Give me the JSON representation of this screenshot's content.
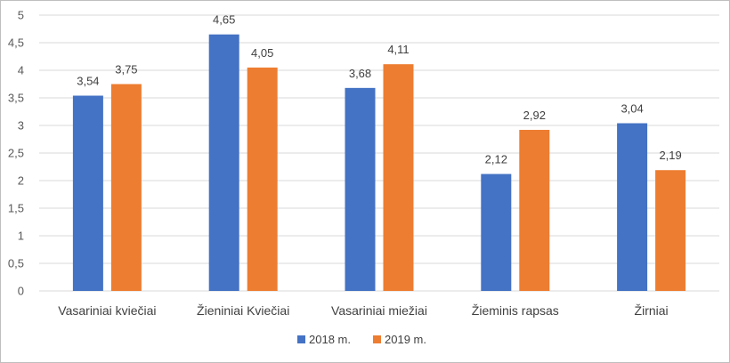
{
  "chart_data": {
    "type": "bar",
    "categories": [
      "Vasariniai kviečiai",
      "Žieniniai Kviečiai",
      "Vasariniai miežiai",
      "Žieminis rapsas",
      "Žirniai"
    ],
    "series": [
      {
        "name": "2018 m.",
        "color": "#4472C4",
        "values": [
          3.54,
          4.65,
          3.68,
          2.12,
          3.04
        ],
        "labels": [
          "3,54",
          "4,65",
          "3,68",
          "2,12",
          "3,04"
        ]
      },
      {
        "name": "2019 m.",
        "color": "#ED7D31",
        "values": [
          3.75,
          4.05,
          4.11,
          2.92,
          2.19
        ],
        "labels": [
          "3,75",
          "4,05",
          "4,11",
          "2,92",
          "2,19"
        ]
      }
    ],
    "ylim": [
      0,
      5
    ],
    "yticks": [
      0,
      0.5,
      1,
      1.5,
      2,
      2.5,
      3,
      3.5,
      4,
      4.5,
      5
    ],
    "ytick_labels": [
      "0",
      "0,5",
      "1",
      "1,5",
      "2",
      "2,5",
      "3",
      "3,5",
      "4",
      "4,5",
      "5"
    ],
    "grid": true,
    "legend_position": "bottom",
    "gridline_color": "#d9d9d9"
  }
}
